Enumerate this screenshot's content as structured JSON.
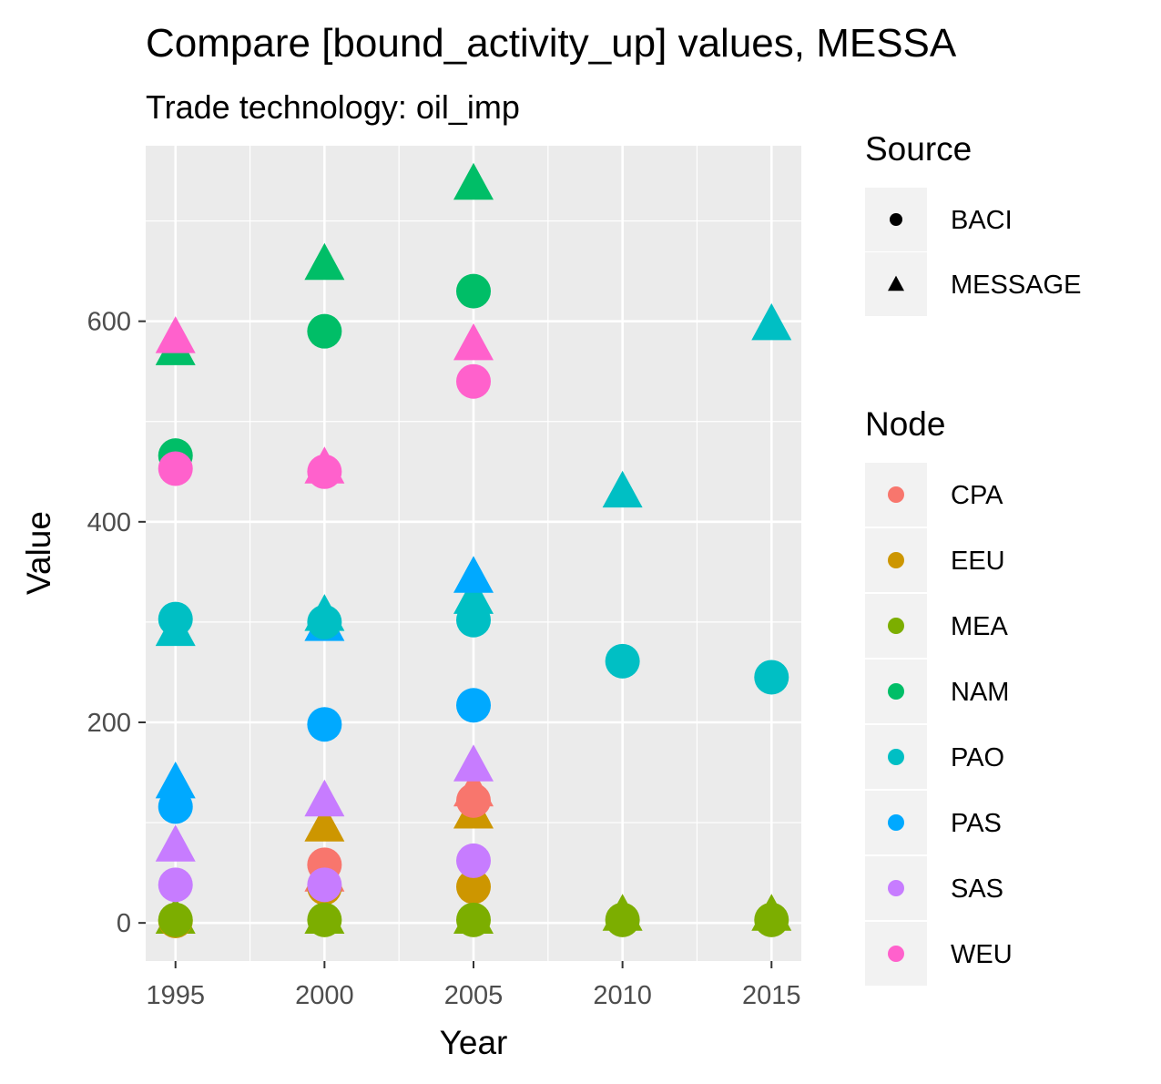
{
  "chart_data": {
    "type": "scatter",
    "title": "Compare [bound_activity_up] values, MESSA",
    "subtitle": "Trade technology: oil_imp",
    "xlabel": "Year",
    "ylabel": "Value",
    "xlim": [
      1994,
      2016
    ],
    "ylim": [
      -38,
      775
    ],
    "x_ticks": [
      1995,
      2000,
      2005,
      2010,
      2015
    ],
    "y_ticks": [
      0,
      200,
      400,
      600
    ],
    "grid": true,
    "legend_position": "right",
    "legends": {
      "source": {
        "title": "Source",
        "items": [
          {
            "label": "BACI",
            "shape": "circle"
          },
          {
            "label": "MESSAGE",
            "shape": "triangle"
          }
        ]
      },
      "node": {
        "title": "Node",
        "items": [
          {
            "label": "CPA",
            "color": "#F8766D"
          },
          {
            "label": "EEU",
            "color": "#CD9600"
          },
          {
            "label": "MEA",
            "color": "#7CAE00"
          },
          {
            "label": "NAM",
            "color": "#00BE67"
          },
          {
            "label": "PAO",
            "color": "#00BFC4"
          },
          {
            "label": "PAS",
            "color": "#00A9FF"
          },
          {
            "label": "SAS",
            "color": "#C77CFF"
          },
          {
            "label": "WEU",
            "color": "#FF61CC"
          }
        ]
      }
    },
    "series": [
      {
        "node": "CPA",
        "source": "BACI",
        "color": "#F8766D",
        "points": [
          [
            2000,
            58
          ],
          [
            2005,
            122
          ]
        ]
      },
      {
        "node": "CPA",
        "source": "MESSAGE",
        "color": "#F8766D",
        "points": [
          [
            2000,
            45
          ],
          [
            2005,
            130
          ]
        ]
      },
      {
        "node": "EEU",
        "source": "BACI",
        "color": "#CD9600",
        "points": [
          [
            1995,
            2
          ],
          [
            2000,
            35
          ],
          [
            2005,
            36
          ]
        ]
      },
      {
        "node": "EEU",
        "source": "MESSAGE",
        "color": "#CD9600",
        "points": [
          [
            2000,
            95
          ],
          [
            2005,
            108
          ]
        ]
      },
      {
        "node": "MEA",
        "source": "BACI",
        "color": "#7CAE00",
        "points": [
          [
            1995,
            3
          ],
          [
            2000,
            3
          ],
          [
            2005,
            3
          ],
          [
            2010,
            3
          ],
          [
            2015,
            3
          ]
        ]
      },
      {
        "node": "MEA",
        "source": "MESSAGE",
        "color": "#7CAE00",
        "points": [
          [
            1995,
            3
          ],
          [
            2000,
            3
          ],
          [
            2005,
            3
          ],
          [
            2010,
            6
          ],
          [
            2015,
            6
          ]
        ]
      },
      {
        "node": "NAM",
        "source": "BACI",
        "color": "#00BE67",
        "points": [
          [
            1995,
            466
          ],
          [
            2000,
            590
          ],
          [
            2005,
            630
          ]
        ]
      },
      {
        "node": "NAM",
        "source": "MESSAGE",
        "color": "#00BE67",
        "points": [
          [
            1995,
            570
          ],
          [
            2000,
            655
          ],
          [
            2005,
            735
          ]
        ]
      },
      {
        "node": "PAO",
        "source": "BACI",
        "color": "#00BFC4",
        "points": [
          [
            1995,
            303
          ],
          [
            2000,
            300
          ],
          [
            2005,
            302
          ],
          [
            2010,
            261
          ],
          [
            2015,
            245
          ]
        ]
      },
      {
        "node": "PAO",
        "source": "MESSAGE",
        "color": "#00BFC4",
        "points": [
          [
            1995,
            290
          ],
          [
            2000,
            305
          ],
          [
            2005,
            322
          ],
          [
            2010,
            428
          ],
          [
            2015,
            595
          ]
        ]
      },
      {
        "node": "PAS",
        "source": "BACI",
        "color": "#00A9FF",
        "points": [
          [
            1995,
            116
          ],
          [
            2000,
            198
          ],
          [
            2005,
            217
          ]
        ]
      },
      {
        "node": "PAS",
        "source": "MESSAGE",
        "color": "#00A9FF",
        "points": [
          [
            1995,
            138
          ],
          [
            2000,
            295
          ],
          [
            2005,
            343
          ]
        ]
      },
      {
        "node": "SAS",
        "source": "BACI",
        "color": "#C77CFF",
        "points": [
          [
            1995,
            38
          ],
          [
            2000,
            38
          ],
          [
            2005,
            62
          ]
        ]
      },
      {
        "node": "SAS",
        "source": "MESSAGE",
        "color": "#C77CFF",
        "points": [
          [
            1995,
            75
          ],
          [
            2000,
            120
          ],
          [
            2005,
            155
          ]
        ]
      },
      {
        "node": "WEU",
        "source": "BACI",
        "color": "#FF61CC",
        "points": [
          [
            1995,
            453
          ],
          [
            2000,
            450
          ],
          [
            2005,
            540
          ]
        ]
      },
      {
        "node": "WEU",
        "source": "MESSAGE",
        "color": "#FF61CC",
        "points": [
          [
            1995,
            582
          ],
          [
            2000,
            452
          ],
          [
            2005,
            575
          ]
        ]
      }
    ]
  }
}
